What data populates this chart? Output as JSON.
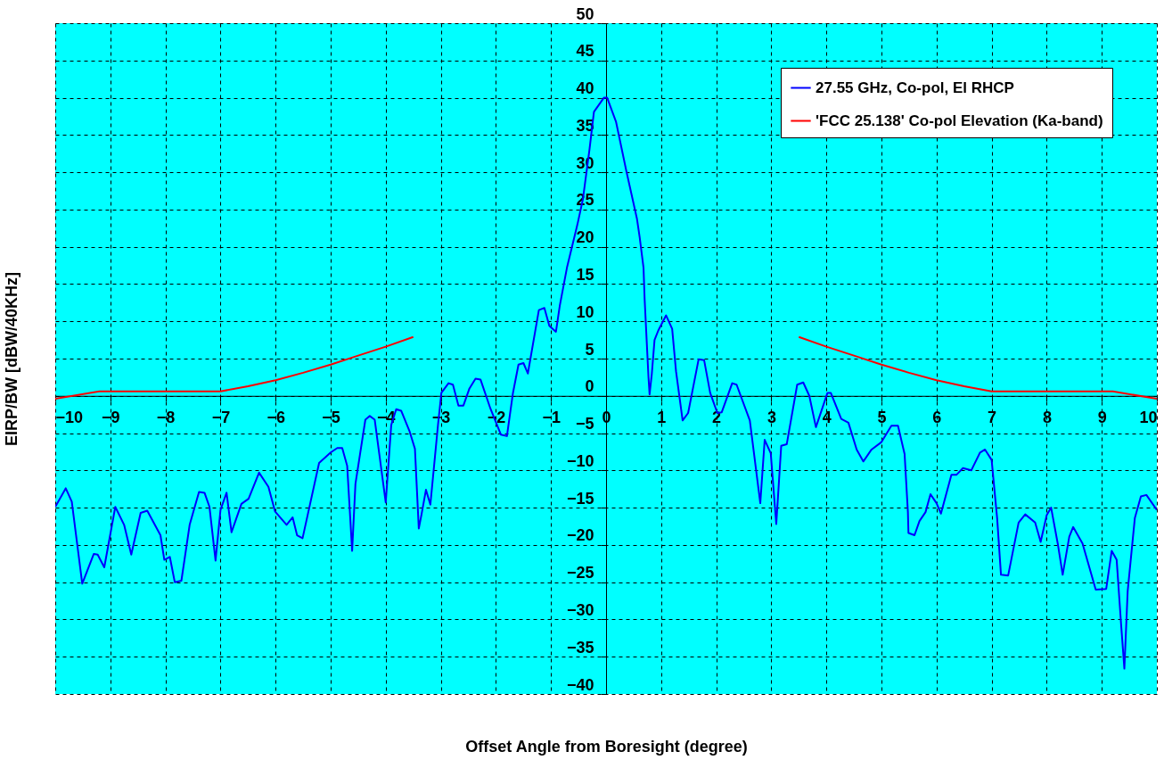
{
  "chart_data": {
    "type": "line",
    "xlabel": "Offset Angle from Boresight (degree)",
    "ylabel": "EIRP/BW [dBW/40KHz]",
    "xlim": [
      -10,
      10
    ],
    "ylim": [
      -40,
      50
    ],
    "xticks": [
      -10,
      -9,
      -8,
      -7,
      -6,
      -5,
      -4,
      -3,
      -2,
      -1,
      0,
      1,
      2,
      3,
      4,
      5,
      6,
      7,
      8,
      9,
      10
    ],
    "yticks": [
      -40,
      -35,
      -30,
      -25,
      -20,
      -15,
      -10,
      -5,
      0,
      5,
      10,
      15,
      20,
      25,
      30,
      35,
      40,
      45,
      50
    ],
    "grid": true,
    "legend": "top right",
    "line_style": "solid",
    "marker": "none",
    "series": [
      {
        "name": "27.55 GHz, Co-pol, El RHCP",
        "color": "#0000ff",
        "x": [
          -10,
          -9.81,
          -9.7,
          -9.51,
          -9.3,
          -9.23,
          -9.11,
          -8.91,
          -8.75,
          -8.62,
          -8.45,
          -8.33,
          -8.09,
          -8.02,
          -7.92,
          -7.83,
          -7.71,
          -7.56,
          -7.39,
          -7.29,
          -7.2,
          -7.09,
          -7.0,
          -6.89,
          -6.8,
          -6.62,
          -6.49,
          -6.3,
          -6.13,
          -6.01,
          -5.8,
          -5.69,
          -5.61,
          -5.51,
          -5.21,
          -5.0,
          -4.88,
          -4.79,
          -4.7,
          -4.61,
          -4.55,
          -4.37,
          -4.29,
          -4.2,
          -4.0,
          -3.9,
          -3.81,
          -3.72,
          -3.57,
          -3.47,
          -3.4,
          -3.35,
          -3.27,
          -3.19,
          -3.05,
          -2.99,
          -2.86,
          -2.78,
          -2.68,
          -2.59,
          -2.48,
          -2.37,
          -2.28,
          -2.1,
          -1.91,
          -1.8,
          -1.69,
          -1.59,
          -1.5,
          -1.42,
          -1.22,
          -1.12,
          -1.03,
          -0.91,
          -0.84,
          -0.71,
          -0.52,
          -0.42,
          -0.3,
          -0.22,
          -0.04,
          0.02,
          0.18,
          0.37,
          0.56,
          0.61,
          0.68,
          0.7,
          0.77,
          0.79,
          0.83,
          0.88,
          0.95,
          1.09,
          1.2,
          1.27,
          1.39,
          1.49,
          1.68,
          1.78,
          1.89,
          2.02,
          2.1,
          2.29,
          2.37,
          2.61,
          2.8,
          2.88,
          2.99,
          3.09,
          3.18,
          3.28,
          3.47,
          3.58,
          3.69,
          3.81,
          4.02,
          4.08,
          4.27,
          4.4,
          4.55,
          4.67,
          4.82,
          5.0,
          5.18,
          5.3,
          5.42,
          5.48,
          5.49,
          5.6,
          5.69,
          5.8,
          5.89,
          6.0,
          6.08,
          6.27,
          6.36,
          6.48,
          6.63,
          6.79,
          6.88,
          7.0,
          7.1,
          7.17,
          7.3,
          7.49,
          7.61,
          7.79,
          7.89,
          8.0,
          8.08,
          8.2,
          8.29,
          8.41,
          8.48,
          8.65,
          8.89,
          9.08,
          9.18,
          9.27,
          9.35,
          9.41,
          9.47,
          9.6,
          9.71,
          9.81,
          10.0
        ],
        "values": [
          -14.9,
          -12.4,
          -14.2,
          -25.2,
          -21.2,
          -21.3,
          -23.0,
          -14.9,
          -17.3,
          -21.3,
          -15.7,
          -15.4,
          -18.7,
          -22.0,
          -21.6,
          -25.0,
          -24.8,
          -17.3,
          -12.9,
          -13.0,
          -14.9,
          -22.1,
          -15.3,
          -13.0,
          -18.3,
          -14.5,
          -13.8,
          -10.3,
          -12.2,
          -15.5,
          -17.3,
          -16.3,
          -18.7,
          -19.1,
          -9.0,
          -7.6,
          -7.0,
          -7.0,
          -9.4,
          -20.8,
          -11.8,
          -3.2,
          -2.7,
          -3.2,
          -14.3,
          -3.9,
          -1.8,
          -2.0,
          -4.7,
          -7.1,
          -17.8,
          -15.9,
          -12.6,
          -14.6,
          -3.8,
          0.4,
          1.7,
          1.5,
          -1.3,
          -1.3,
          1.0,
          2.3,
          2.2,
          -1.7,
          -5.2,
          -5.4,
          0.4,
          4.2,
          4.4,
          3.0,
          11.5,
          11.8,
          9.4,
          8.6,
          12.1,
          17.2,
          23.0,
          26.4,
          33.1,
          38.1,
          40.0,
          40.0,
          36.8,
          30.1,
          23.8,
          21.3,
          17.2,
          13.0,
          2.5,
          0.2,
          2.9,
          7.5,
          8.8,
          10.8,
          9.0,
          3.3,
          -3.3,
          -2.3,
          4.9,
          4.8,
          0.4,
          -2.3,
          -2.2,
          1.7,
          1.5,
          -3.3,
          -14.4,
          -5.9,
          -7.7,
          -17.2,
          -6.7,
          -6.5,
          1.5,
          1.8,
          0.0,
          -4.2,
          0.4,
          0.4,
          -3.1,
          -3.6,
          -7.2,
          -8.8,
          -7.2,
          -6.2,
          -4.0,
          -4.0,
          -7.8,
          -15.6,
          -18.4,
          -18.7,
          -16.8,
          -15.6,
          -13.2,
          -14.4,
          -15.8,
          -10.6,
          -10.6,
          -9.7,
          -10.0,
          -7.6,
          -7.2,
          -8.6,
          -16.4,
          -24.0,
          -24.1,
          -17.0,
          -15.9,
          -17.0,
          -19.6,
          -16.0,
          -15.0,
          -19.8,
          -24.0,
          -18.9,
          -17.6,
          -19.8,
          -26.0,
          -25.9,
          -20.8,
          -22.0,
          -30.6,
          -36.6,
          -26.2,
          -16.4,
          -13.5,
          -13.3,
          -15.3
        ]
      },
      {
        "name": "'FCC 25.138' Co-pol Elevation (Ka-band)",
        "color": "#ff0000",
        "x": [
          -10,
          -9.2,
          -7,
          -6.5,
          -6,
          -5.5,
          -5,
          -4.5,
          -4,
          -3.5,
          0,
          3.5,
          4,
          4.5,
          5,
          5.5,
          6,
          6.5,
          7,
          9.2,
          10
        ],
        "values": [
          -0.4,
          0.6,
          0.6,
          1.3,
          2.1,
          3.1,
          4.2,
          5.4,
          6.6,
          7.9,
          null,
          7.9,
          6.6,
          5.4,
          4.2,
          3.1,
          2.1,
          1.3,
          0.6,
          0.6,
          -0.4
        ]
      }
    ]
  }
}
